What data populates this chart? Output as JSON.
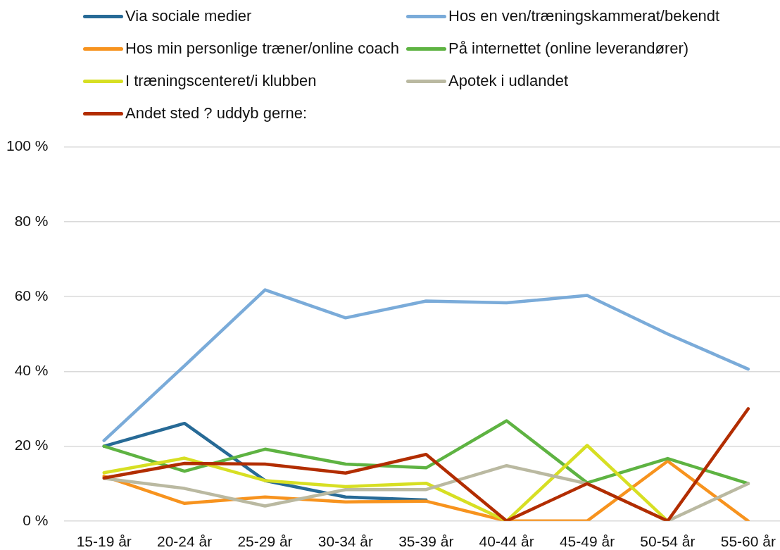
{
  "chart_data": {
    "type": "line",
    "categories": [
      "15-19 år",
      "20-24 år",
      "25-29 år",
      "30-34 år",
      "35-39 år",
      "40-44 år",
      "45-49 år",
      "50-54 år",
      "55-60 år"
    ],
    "series": [
      {
        "name": "Via sociale medier",
        "color": "#276a96",
        "values": [
          20,
          26.1,
          10.8,
          6.4,
          5.6,
          null,
          null,
          null,
          null
        ]
      },
      {
        "name": "Hos en ven/træningskammerat/bekendt",
        "color": "#7aabd9",
        "values": [
          21.5,
          41.5,
          61.8,
          54.3,
          58.8,
          58.3,
          60.3,
          50,
          40.6
        ]
      },
      {
        "name": "Hos min personlige træner/online coach",
        "color": "#f7931e",
        "values": [
          12,
          4.7,
          6.4,
          5.1,
          5.3,
          0,
          0,
          16,
          0
        ]
      },
      {
        "name": "På internettet (online leverandører)",
        "color": "#5eb342",
        "values": [
          20,
          13.3,
          19.2,
          15.2,
          14.2,
          26.8,
          10.2,
          16.7,
          10
        ]
      },
      {
        "name": "I træningscenteret/i klubben",
        "color": "#d7df23",
        "values": [
          12.9,
          16.8,
          10.8,
          9.2,
          10.1,
          0,
          20.2,
          0,
          null
        ]
      },
      {
        "name": "Apotek i udlandet",
        "color": "#bab9a1",
        "values": [
          11.4,
          8.7,
          4,
          8.4,
          8.4,
          14.8,
          10,
          0,
          10
        ]
      },
      {
        "name": "Andet sted ? uddyb gerne:",
        "color": "#b22d00",
        "values": [
          11.5,
          15.4,
          15.2,
          12.8,
          17.8,
          0,
          10,
          0,
          30
        ]
      }
    ],
    "ylim": [
      0,
      100
    ],
    "yticks": [
      {
        "value": 0,
        "label": "0 %"
      },
      {
        "value": 20,
        "label": "20 %"
      },
      {
        "value": 40,
        "label": "40 %"
      },
      {
        "value": 60,
        "label": "60 %"
      },
      {
        "value": 80,
        "label": "80 %"
      },
      {
        "value": 100,
        "label": "100 %"
      }
    ],
    "grid": "y",
    "legend": "top"
  }
}
